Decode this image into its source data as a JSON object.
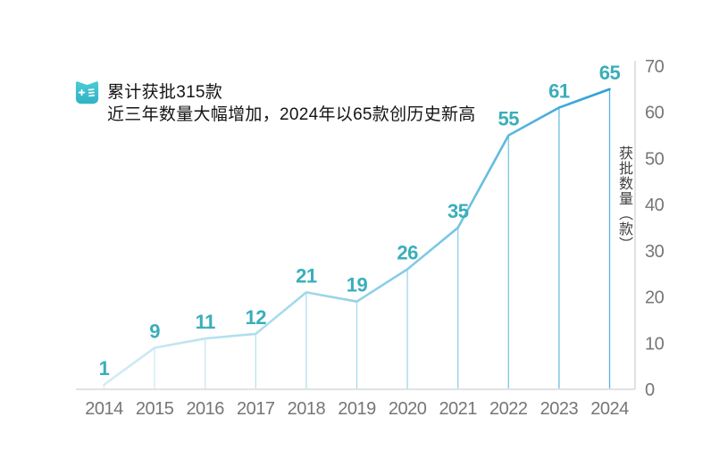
{
  "header": {
    "icon": "booklet-icon",
    "line1": "累计获批315款",
    "line2": "近三年数量大幅增加，2024年以65款创历史新高"
  },
  "chart_data": {
    "type": "line",
    "title": "累计获批315款，近三年数量大幅增加，2024年以65款创历史新高",
    "categories": [
      "2014",
      "2015",
      "2016",
      "2017",
      "2018",
      "2019",
      "2020",
      "2021",
      "2022",
      "2023",
      "2024"
    ],
    "values": [
      1,
      9,
      11,
      12,
      21,
      19,
      26,
      35,
      55,
      61,
      65
    ],
    "cumulative_total": 315,
    "xlabel": "",
    "ylabel": "获批数量（款）",
    "ylim": [
      0,
      70
    ],
    "yticks": [
      0,
      10,
      20,
      30,
      40,
      50,
      60,
      70
    ],
    "grid": false,
    "legend": "none",
    "data_labels": true,
    "style": {
      "line_gradient": [
        "#d3ecf4",
        "#a9dcec",
        "#7cc8e4",
        "#2c9fd7"
      ],
      "data_label_color": "#3aaebb",
      "axis_line_color": "#d9d9d9",
      "tick_label_color": "#767676",
      "axis_title_color": "#3f3f3f",
      "icon_color_top": "#4bcbd5",
      "icon_color_bottom": "#2fb3c4"
    }
  }
}
